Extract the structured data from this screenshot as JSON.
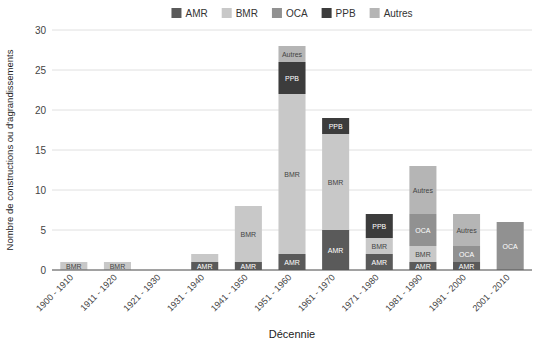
{
  "chart_data": {
    "type": "bar",
    "stacked": true,
    "categories": [
      "1900 - 1910",
      "1911 - 1920",
      "1921 - 1930",
      "1931 - 1940",
      "1941 - 1950",
      "1951 - 1960",
      "1961 - 1970",
      "1971 - 1980",
      "1981 - 1990",
      "1991 - 2000",
      "2001 - 2010"
    ],
    "series": [
      {
        "name": "AMR",
        "color": "#5a5a5a",
        "values": [
          0,
          0,
          0,
          1,
          1,
          2,
          5,
          2,
          1,
          1,
          0
        ]
      },
      {
        "name": "BMR",
        "color": "#c8c8c8",
        "values": [
          1,
          1,
          0,
          1,
          7,
          20,
          12,
          2,
          2,
          0,
          0
        ]
      },
      {
        "name": "OCA",
        "color": "#919191",
        "values": [
          0,
          0,
          0,
          0,
          0,
          0,
          0,
          0,
          4,
          2,
          6
        ]
      },
      {
        "name": "PPB",
        "color": "#3c3c3c",
        "values": [
          0,
          0,
          0,
          0,
          0,
          4,
          2,
          3,
          0,
          0,
          0
        ]
      },
      {
        "name": "Autres",
        "color": "#b5b5b5",
        "values": [
          0,
          0,
          0,
          0,
          0,
          2,
          0,
          0,
          6,
          4,
          0
        ]
      }
    ],
    "xlabel": "Décennie",
    "ylabel": "Nombre de constructions ou d'agrandissements",
    "ylim": [
      0,
      30
    ],
    "yticks": [
      0,
      5,
      10,
      15,
      20,
      25,
      30
    ],
    "grid": true,
    "legend": "top",
    "annotations": [
      {
        "category": "1900 - 1910",
        "series": "BMR",
        "text": "BMR"
      },
      {
        "category": "1911 - 1920",
        "series": "BMR",
        "text": "BMR"
      },
      {
        "category": "1931 - 1940",
        "series": "AMR",
        "text": "AMR"
      },
      {
        "category": "1941 - 1950",
        "series": "AMR",
        "text": "AMR"
      },
      {
        "category": "1941 - 1950",
        "series": "BMR",
        "text": "BMR"
      },
      {
        "category": "1951 - 1960",
        "series": "AMR",
        "text": "AMR"
      },
      {
        "category": "1951 - 1960",
        "series": "BMR",
        "text": "BMR"
      },
      {
        "category": "1951 - 1960",
        "series": "PPB",
        "text": "PPB"
      },
      {
        "category": "1951 - 1960",
        "series": "Autres",
        "text": "Autres"
      },
      {
        "category": "1961 - 1970",
        "series": "AMR",
        "text": "AMR"
      },
      {
        "category": "1961 - 1970",
        "series": "BMR",
        "text": "BMR"
      },
      {
        "category": "1961 - 1970",
        "series": "PPB",
        "text": "PPB"
      },
      {
        "category": "1971 - 1980",
        "series": "AMR",
        "text": "AMR"
      },
      {
        "category": "1971 - 1980",
        "series": "BMR",
        "text": "BMR"
      },
      {
        "category": "1971 - 1980",
        "series": "PPB",
        "text": "PPB"
      },
      {
        "category": "1981 - 1990",
        "series": "AMR",
        "text": "AMR"
      },
      {
        "category": "1981 - 1990",
        "series": "BMR",
        "text": "BMR"
      },
      {
        "category": "1981 - 1990",
        "series": "OCA",
        "text": "OCA"
      },
      {
        "category": "1981 - 1990",
        "series": "Autres",
        "text": "Autres"
      },
      {
        "category": "1991 - 2000",
        "series": "AMR",
        "text": "AMR"
      },
      {
        "category": "1991 - 2000",
        "series": "OCA",
        "text": "OCA"
      },
      {
        "category": "1991 - 2000",
        "series": "Autres",
        "text": "Autres"
      },
      {
        "category": "2001 - 2010",
        "series": "OCA",
        "text": "OCA"
      }
    ]
  }
}
